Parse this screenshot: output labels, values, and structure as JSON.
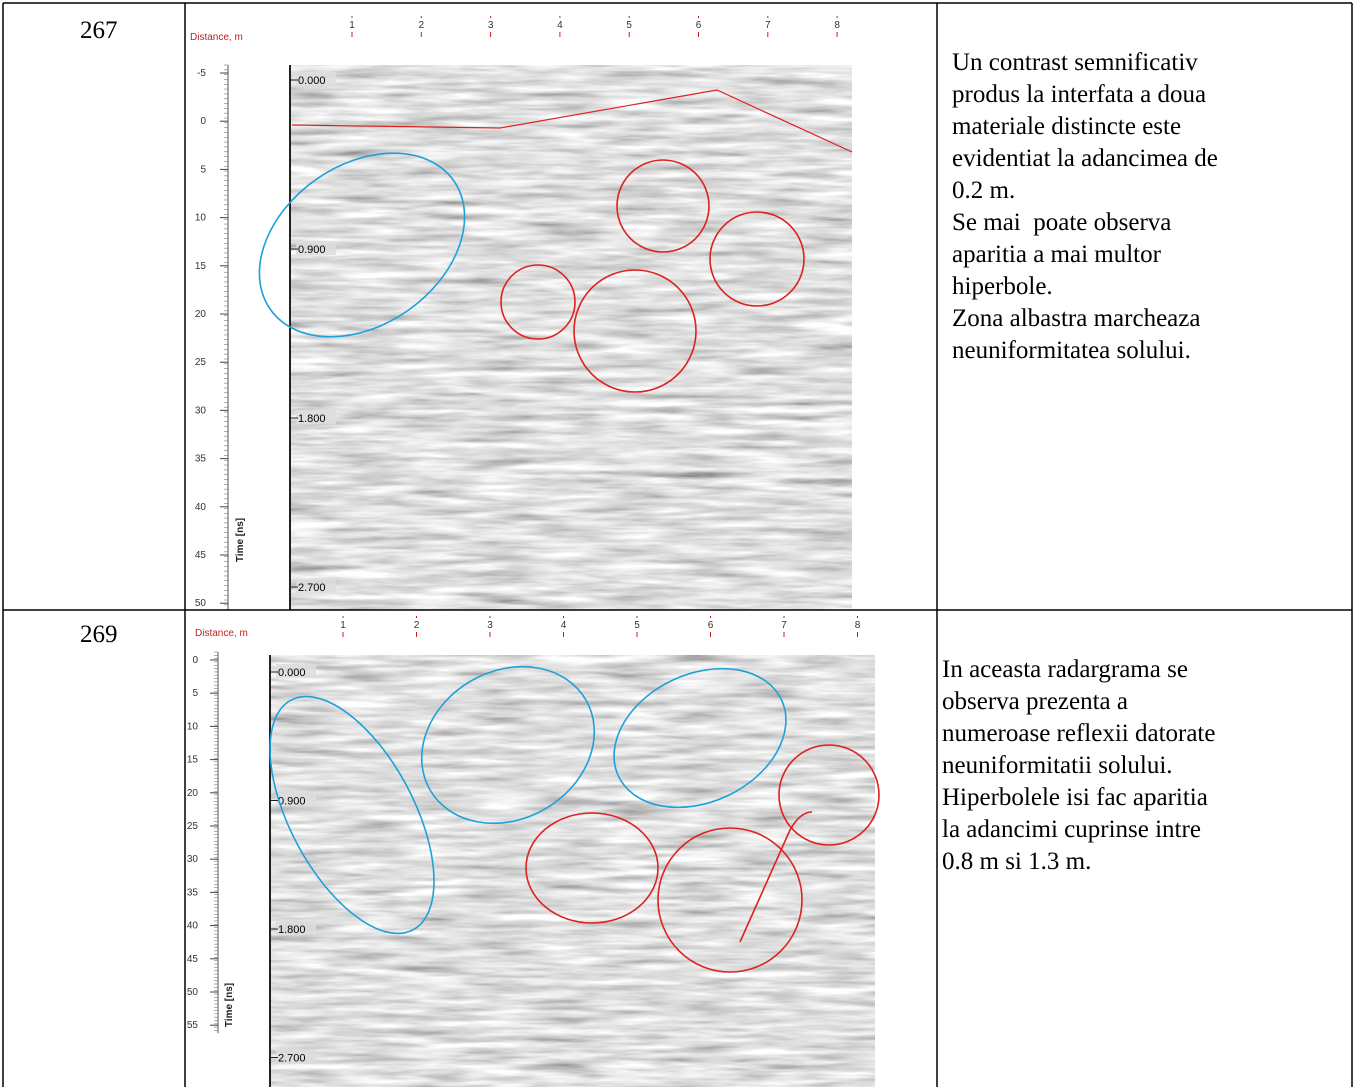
{
  "table": {
    "rows": [
      {
        "id": "267",
        "figure": {
          "distance_label": "Distance, m",
          "distance_ticks": [
            "1",
            "2",
            "3",
            "4",
            "5",
            "6",
            "7",
            "8"
          ],
          "time_label": "Time [ns]",
          "time_ticks": [
            "-5",
            "0",
            "5",
            "10",
            "15",
            "20",
            "25",
            "30",
            "35",
            "40",
            "45",
            "50"
          ],
          "depth_labels": [
            "0.000",
            "0.900",
            "1.800",
            "2.700"
          ]
        },
        "description": [
          "Un contrast semnificativ",
          "produs la interfata a doua",
          "materiale distincte este",
          "evidentiat la adancimea de",
          "0.2 m.",
          "Se mai  poate observa",
          "aparitia a mai multor",
          "hiperbole.",
          "Zona albastra marcheaza",
          "neuniformitatea solului."
        ]
      },
      {
        "id": "269",
        "figure": {
          "distance_label": "Distance, m",
          "distance_ticks": [
            "1",
            "2",
            "3",
            "4",
            "5",
            "6",
            "7",
            "8"
          ],
          "time_label": "Time [ns]",
          "time_ticks": [
            "0",
            "5",
            "10",
            "15",
            "20",
            "25",
            "30",
            "35",
            "40",
            "45",
            "50",
            "55"
          ],
          "depth_labels": [
            "0.000",
            "0.900",
            "1.800",
            "2.700"
          ]
        },
        "description": [
          "In aceasta radargrama se",
          "observa prezenta a",
          "numeroase reflexii datorate",
          "neuniformitatii solului.",
          "Hiperbolele isi fac aparitia",
          "la adancimi cuprinse intre",
          "0.8 m si 1.3 m."
        ]
      }
    ]
  }
}
